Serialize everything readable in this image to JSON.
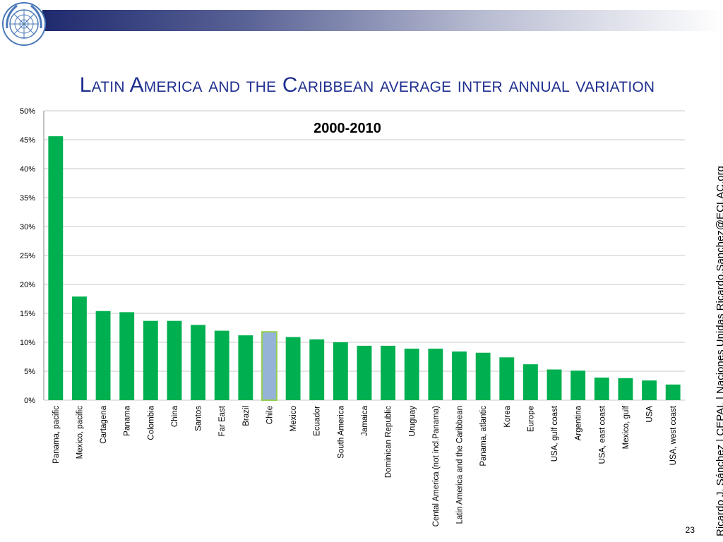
{
  "slide": {
    "title": "Latin America and the Caribbean average inter annual variation",
    "side_credit": "Ricardo J. Sánchez | CEPAL | Naciones Unidas   Ricardo.Sanchez@ECLAC.org",
    "page_number": "23",
    "logo": "un-emblem-icon"
  },
  "colors": {
    "bar": "#00b050",
    "highlight_bar": "#95b3d7",
    "highlight_border": "#92d050",
    "grid": "#c8c8c8",
    "title": "#1f2f8f"
  },
  "chart_data": {
    "type": "bar",
    "title": "2000-2010",
    "xlabel": "",
    "ylabel": "",
    "ylim": [
      0,
      0.5
    ],
    "y_ticks": [
      0,
      0.05,
      0.1,
      0.15,
      0.2,
      0.25,
      0.3,
      0.35,
      0.4,
      0.45,
      0.5
    ],
    "y_tick_labels": [
      "0%",
      "5%",
      "10%",
      "15%",
      "20%",
      "25%",
      "30%",
      "35%",
      "40%",
      "45%",
      "50%"
    ],
    "grid": true,
    "legend": "none",
    "highlight_category": "Chile",
    "categories": [
      "Panama, pacific",
      "Mexico, pacific",
      "Cartagena",
      "Panama",
      "Colombia",
      "China",
      "Santos",
      "Far East",
      "Brazil",
      "Chile",
      "Mexico",
      "Ecuador",
      "South America",
      "Jamaica",
      "Dominican Republic",
      "Uruguay",
      "Cental America (not incl.Panama)",
      "Latin America and the Caribbean",
      "Panama, atlantic",
      "Korea",
      "Europe",
      "USA, gulf coast",
      "Argentina",
      "USA, east coast",
      "Mexico, gulf",
      "USA",
      "USA, west coast"
    ],
    "values": [
      0.456,
      0.179,
      0.154,
      0.152,
      0.137,
      0.137,
      0.13,
      0.12,
      0.112,
      0.118,
      0.109,
      0.105,
      0.1,
      0.094,
      0.094,
      0.089,
      0.089,
      0.084,
      0.082,
      0.074,
      0.062,
      0.053,
      0.051,
      0.039,
      0.038,
      0.034,
      0.027
    ]
  }
}
